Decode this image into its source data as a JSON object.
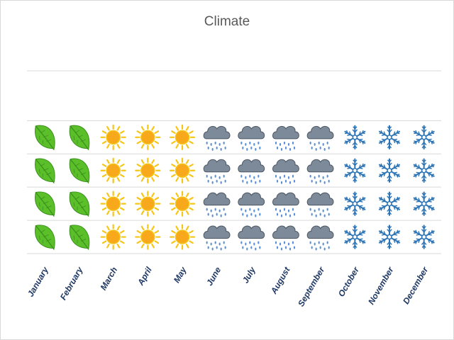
{
  "chart_data": {
    "type": "pictograph",
    "title": "Climate",
    "categories": [
      "January",
      "February",
      "March",
      "April",
      "May",
      "June",
      "July",
      "August",
      "September",
      "October",
      "November",
      "December"
    ],
    "values": [
      4,
      4,
      4,
      4,
      4,
      4,
      4,
      4,
      4,
      4,
      4,
      4
    ],
    "icons": [
      "leaf-icon",
      "leaf-icon",
      "sun-icon",
      "sun-icon",
      "sun-icon",
      "rain-cloud-icon",
      "rain-cloud-icon",
      "rain-cloud-icon",
      "rain-cloud-icon",
      "snowflake-icon",
      "snowflake-icon",
      "snowflake-icon"
    ],
    "ylim": [
      0,
      4
    ],
    "grid": true,
    "legend": "none",
    "colors": {
      "leaf": "#5bbf2a",
      "leaf_dark": "#3a8f1c",
      "sun": "#f5c518",
      "sun_core": "#f7a81b",
      "cloud": "#7d8a99",
      "rain": "#5b8fd6",
      "snow": "#2e75b6",
      "label": "#1f3864",
      "grid": "#d9d9d9"
    }
  }
}
